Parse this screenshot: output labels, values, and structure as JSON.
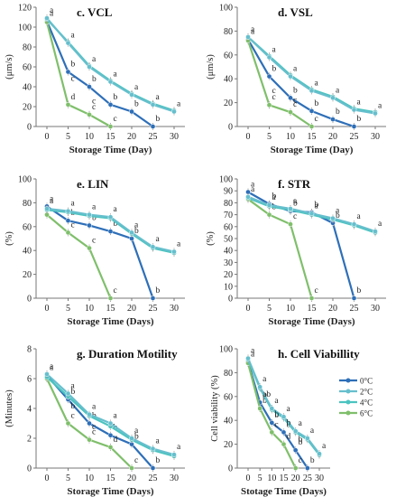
{
  "colors": {
    "0C": "#2e6fb8",
    "2C": "#66bfcd",
    "4C": "#4bc4c0",
    "6C": "#7fbf6b"
  },
  "legend": {
    "placement": "right of panel h",
    "entries": [
      "0°C",
      "2°C",
      "4°C",
      "6°C"
    ]
  },
  "chart_data": [
    {
      "type": "line",
      "title": "c. VCL",
      "xlabel": "Storage Time (Day)",
      "ylabel": "(μm/s)",
      "ylim": [
        0,
        120
      ],
      "yticks": [
        0,
        20,
        40,
        60,
        80,
        100,
        120
      ],
      "x": [
        0,
        5,
        10,
        15,
        20,
        25,
        30
      ],
      "grid": false,
      "series": [
        {
          "name": "0°C",
          "key": "0C",
          "x": [
            0,
            5,
            10,
            15,
            20,
            25
          ],
          "values": [
            106,
            55,
            40,
            22,
            15,
            0
          ],
          "labels": [
            "a",
            "b",
            "b",
            "b",
            "b",
            "b"
          ]
        },
        {
          "name": "2°C",
          "key": "2C",
          "x": [
            0,
            5,
            10,
            15,
            20,
            25,
            30
          ],
          "values": [
            109,
            84,
            60,
            45,
            32,
            22,
            15
          ],
          "labels": [
            "a",
            "a",
            "a",
            "a",
            "a",
            "a",
            "a"
          ]
        },
        {
          "name": "4°C",
          "key": "4C",
          "x": [
            0,
            5,
            10,
            15,
            20,
            25,
            30
          ],
          "values": [
            108,
            85,
            61,
            46,
            33,
            23,
            16
          ],
          "labels": [
            "",
            "",
            "",
            "",
            "",
            "",
            ""
          ]
        },
        {
          "name": "6°C",
          "key": "6C",
          "x": [
            0,
            5,
            10,
            15
          ],
          "values": [
            105,
            22,
            12,
            0
          ],
          "labels": [
            "",
            "d",
            "c",
            "c"
          ]
        }
      ],
      "extra_labels": [
        {
          "x": 5,
          "y": 46,
          "t": "c"
        },
        {
          "x": 10,
          "y": 23,
          "t": "c"
        }
      ]
    },
    {
      "type": "line",
      "title": "d. VSL",
      "xlabel": "Storage Time (Day)",
      "ylabel": "(μm/s)",
      "ylim": [
        0,
        100
      ],
      "yticks": [
        0,
        20,
        40,
        60,
        80,
        100
      ],
      "x": [
        0,
        5,
        10,
        15,
        20,
        25,
        30
      ],
      "grid": false,
      "series": [
        {
          "name": "0°C",
          "key": "0C",
          "x": [
            0,
            5,
            10,
            15,
            20,
            25
          ],
          "values": [
            73,
            42,
            24,
            13,
            6,
            0
          ],
          "labels": [
            "a",
            "b",
            "b",
            "b",
            "b",
            "b"
          ]
        },
        {
          "name": "2°C",
          "key": "2C",
          "x": [
            0,
            5,
            10,
            15,
            20,
            25,
            30
          ],
          "values": [
            75,
            58,
            42,
            30,
            24,
            14,
            11
          ],
          "labels": [
            "a",
            "a",
            "a",
            "a",
            "a",
            "a",
            "a"
          ]
        },
        {
          "name": "4°C",
          "key": "4C",
          "x": [
            0,
            5,
            10,
            15,
            20,
            25,
            30
          ],
          "values": [
            75,
            59,
            43,
            31,
            25,
            15,
            12
          ],
          "labels": [
            "",
            "",
            "",
            "",
            "",
            "",
            ""
          ]
        },
        {
          "name": "6°C",
          "key": "6C",
          "x": [
            0,
            5,
            10,
            15
          ],
          "values": [
            72,
            18,
            12,
            0
          ],
          "labels": [
            "",
            "c",
            "c",
            "c"
          ]
        }
      ],
      "extra_labels": [
        {
          "x": 5,
          "y": 28,
          "t": "c"
        },
        {
          "x": 10,
          "y": 20,
          "t": "c"
        }
      ]
    },
    {
      "type": "line",
      "title": "e. LIN",
      "xlabel": "Storage Time (Days)",
      "ylabel": "(%)",
      "ylim": [
        0,
        100
      ],
      "yticks": [
        0,
        20,
        40,
        60,
        80,
        100
      ],
      "x": [
        0,
        5,
        10,
        15,
        20,
        25,
        30
      ],
      "grid": false,
      "series": [
        {
          "name": "0°C",
          "key": "0C",
          "x": [
            0,
            5,
            10,
            15,
            20,
            25
          ],
          "values": [
            77,
            65,
            61,
            56,
            50,
            0
          ],
          "labels": [
            "a",
            "b",
            "b",
            "b",
            "b",
            "b"
          ]
        },
        {
          "name": "2°C",
          "key": "2C",
          "x": [
            0,
            5,
            10,
            15,
            20,
            25,
            30
          ],
          "values": [
            75,
            73,
            70,
            68,
            55,
            43,
            39
          ],
          "labels": [
            "a",
            "a",
            "a",
            "a",
            "a",
            "a",
            "a"
          ]
        },
        {
          "name": "4°C",
          "key": "4C",
          "x": [
            0,
            5,
            10,
            15,
            20,
            25,
            30
          ],
          "values": [
            74,
            72,
            69,
            67,
            54,
            42,
            38
          ],
          "labels": [
            "",
            "",
            "",
            "",
            "",
            "",
            ""
          ]
        },
        {
          "name": "6°C",
          "key": "6C",
          "x": [
            0,
            5,
            10,
            15
          ],
          "values": [
            70,
            55,
            42,
            0
          ],
          "labels": [
            "",
            "c",
            "c",
            "c"
          ]
        }
      ],
      "extra_labels": []
    },
    {
      "type": "line",
      "title": "f. STR",
      "xlabel": "Storage Time (Days)",
      "ylabel": "(%)",
      "ylim": [
        0,
        100
      ],
      "yticks": [
        0,
        10,
        20,
        30,
        40,
        50,
        60,
        70,
        80,
        90,
        100
      ],
      "x": [
        0,
        5,
        10,
        15,
        20,
        25,
        30
      ],
      "grid": false,
      "series": [
        {
          "name": "0°C",
          "key": "0C",
          "x": [
            0,
            5,
            10,
            15,
            20,
            25
          ],
          "values": [
            89,
            79,
            73,
            72,
            63,
            0
          ],
          "labels": [
            "a",
            "b",
            "b",
            "b",
            "b",
            "b"
          ]
        },
        {
          "name": "2°C",
          "key": "2C",
          "x": [
            0,
            5,
            10,
            15,
            20,
            25,
            30
          ],
          "values": [
            85,
            78,
            75,
            71,
            67,
            62,
            56
          ],
          "labels": [
            "a",
            "a",
            "a",
            "a",
            "a",
            "a",
            "a"
          ]
        },
        {
          "name": "4°C",
          "key": "4C",
          "x": [
            0,
            5,
            10,
            15,
            20,
            25,
            30
          ],
          "values": [
            84,
            77,
            74,
            70,
            66,
            61,
            55
          ],
          "labels": [
            "",
            "",
            "",
            "",
            "",
            "",
            ""
          ]
        },
        {
          "name": "6°C",
          "key": "6C",
          "x": [
            0,
            5,
            10,
            15
          ],
          "values": [
            83,
            70,
            62,
            0
          ],
          "labels": [
            "",
            "b",
            "c",
            "c"
          ]
        }
      ],
      "extra_labels": []
    },
    {
      "type": "line",
      "title": "g. Duration Motility",
      "xlabel": "Storage Time (Days)",
      "ylabel": "(Minutes)",
      "ylim": [
        0,
        8
      ],
      "yticks": [
        0,
        2,
        4,
        6,
        8
      ],
      "x": [
        0,
        5,
        10,
        15,
        20,
        25,
        30
      ],
      "grid": false,
      "series": [
        {
          "name": "0°C",
          "key": "0C",
          "x": [
            0,
            5,
            10,
            15,
            20,
            25
          ],
          "values": [
            6.2,
            4.6,
            3.0,
            2.2,
            1.6,
            0
          ],
          "labels": [
            "a",
            "b",
            "b",
            "b",
            "b",
            "b"
          ]
        },
        {
          "name": "2°C",
          "key": "2C",
          "x": [
            0,
            5,
            10,
            15,
            20,
            25,
            30
          ],
          "values": [
            6.3,
            5.0,
            3.6,
            3.0,
            2.0,
            1.3,
            0.9
          ],
          "labels": [
            "a",
            "a",
            "a",
            "a",
            "a",
            "a",
            "a"
          ]
        },
        {
          "name": "4°C",
          "key": "4C",
          "x": [
            0,
            5,
            10,
            15,
            20,
            25,
            30
          ],
          "values": [
            6.1,
            4.8,
            3.5,
            2.8,
            1.9,
            1.2,
            0.8
          ],
          "labels": [
            "",
            "",
            "",
            "",
            "",
            "",
            ""
          ]
        },
        {
          "name": "6°C",
          "key": "6C",
          "x": [
            0,
            5,
            10,
            15,
            20
          ],
          "values": [
            6.0,
            3.0,
            1.9,
            1.4,
            0
          ],
          "labels": [
            "",
            "c",
            "c",
            "d",
            "c"
          ]
        }
      ],
      "extra_labels": [
        {
          "x": 5,
          "y": 4.0,
          "t": "b"
        },
        {
          "x": 10,
          "y": 2.6,
          "t": "c"
        }
      ]
    },
    {
      "type": "line",
      "title": "h. Cell Viabillity",
      "xlabel": "Stotage Time (Days)",
      "ylabel": "Cell viability (%)",
      "ylim": [
        0,
        100
      ],
      "yticks": [
        0,
        20,
        40,
        60,
        80,
        100
      ],
      "x": [
        0,
        5,
        10,
        15,
        20,
        25,
        30
      ],
      "grid": false,
      "series": [
        {
          "name": "0°C",
          "key": "0C",
          "x": [
            0,
            5,
            10,
            15,
            20,
            25
          ],
          "values": [
            89,
            55,
            38,
            30,
            15,
            0
          ],
          "labels": [
            "a",
            "b",
            "b",
            "b",
            "b",
            "b"
          ]
        },
        {
          "name": "2°C",
          "key": "2C",
          "x": [
            0,
            5,
            10,
            15,
            20,
            25,
            30
          ],
          "values": [
            92,
            68,
            50,
            43,
            31,
            25,
            12
          ],
          "labels": [
            "a",
            "a",
            "a",
            "a",
            "a",
            "a",
            "a"
          ]
        },
        {
          "name": "4°C",
          "key": "4C",
          "x": [
            0,
            5,
            10,
            15,
            20,
            25,
            30
          ],
          "values": [
            91,
            67,
            49,
            42,
            30,
            24,
            11
          ],
          "labels": [
            "",
            "",
            "",
            "",
            "",
            "",
            ""
          ]
        },
        {
          "name": "6°C",
          "key": "6C",
          "x": [
            0,
            5,
            10,
            15,
            20
          ],
          "values": [
            88,
            50,
            30,
            20,
            0
          ],
          "labels": [
            "",
            "b",
            "c",
            "d",
            "c"
          ]
        }
      ],
      "extra_labels": [
        {
          "x": 5,
          "y": 60,
          "t": "ab"
        },
        {
          "x": 10,
          "y": 43,
          "t": "b"
        },
        {
          "x": 15,
          "y": 36,
          "t": "b"
        },
        {
          "x": 20,
          "y": 22,
          "t": "b"
        }
      ]
    }
  ]
}
